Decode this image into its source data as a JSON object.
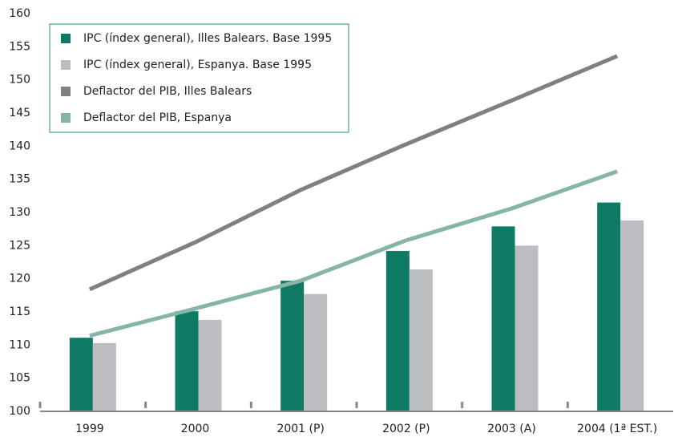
{
  "chart_data": {
    "type": "bar_line",
    "categories": [
      "1999",
      "2000",
      "2001 (P)",
      "2002 (P)",
      "2003 (A)",
      "2004 (1ª EST.)"
    ],
    "series": [
      {
        "name": "IPC (índex general), Illes Balears. Base 1995",
        "kind": "bar",
        "color": "#0e7a66",
        "values": [
          111.1,
          115.1,
          119.7,
          124.2,
          127.9,
          131.5
        ]
      },
      {
        "name": "IPC (índex  general), Espanya. Base 1995",
        "kind": "bar",
        "color": "#bcbdc0",
        "values": [
          110.3,
          113.8,
          117.7,
          121.4,
          125.0,
          128.8
        ]
      },
      {
        "name": "Deflactor del PIB, Illes Balears",
        "kind": "line",
        "color": "#808080",
        "values": [
          118.4,
          125.5,
          133.4,
          140.3,
          146.9,
          153.6
        ]
      },
      {
        "name": "Deflactor del PIB, Espanya",
        "kind": "line",
        "color": "#86b5a8",
        "values": [
          111.4,
          115.5,
          119.7,
          125.8,
          130.6,
          136.2
        ]
      }
    ],
    "ylim": [
      100,
      160
    ],
    "yticks": [
      100,
      105,
      110,
      115,
      120,
      125,
      130,
      135,
      140,
      145,
      150,
      155,
      160
    ],
    "grid": false,
    "legend": "top-left"
  }
}
